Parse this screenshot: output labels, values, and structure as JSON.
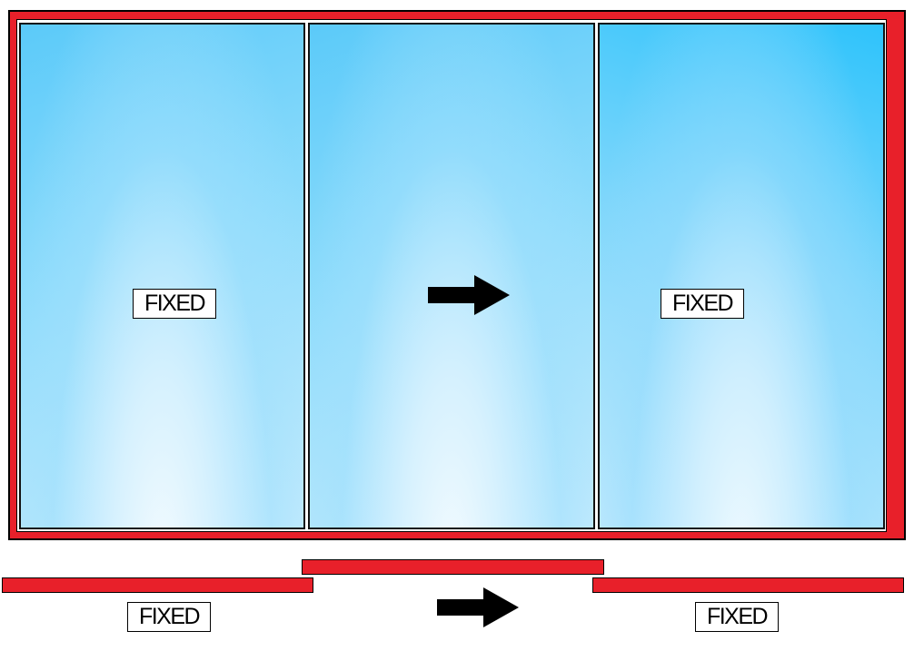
{
  "panels": {
    "left": {
      "label": "FIXED"
    },
    "middle": {
      "direction": "right"
    },
    "right": {
      "label": "FIXED"
    }
  },
  "plan_view": {
    "left_label": "FIXED",
    "right_label": "FIXED",
    "direction": "right"
  },
  "colors": {
    "frame": "#e8202a",
    "glass": "#5bcaf9",
    "outline": "#000000"
  }
}
